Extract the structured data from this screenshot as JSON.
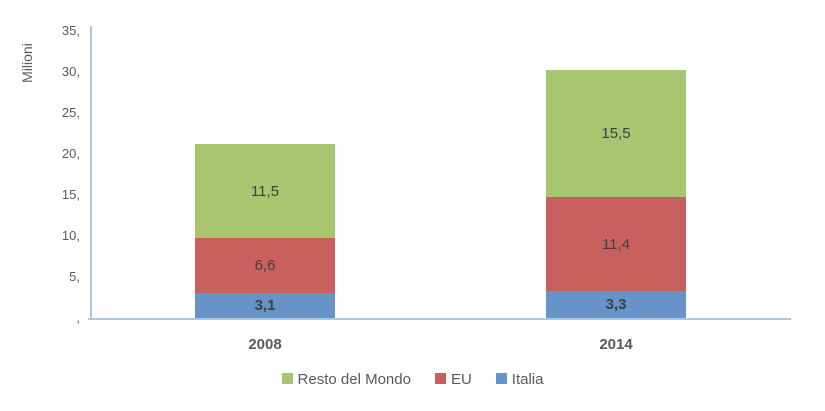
{
  "chart_data": {
    "type": "bar",
    "subtype": "stacked",
    "title": "",
    "ylabel": "Milioni",
    "xlabel": "",
    "categories": [
      "2008",
      "2014"
    ],
    "series": [
      {
        "name": "Italia",
        "color": "#6694C8",
        "values": [
          3.1,
          3.3
        ],
        "labels": [
          "3,1",
          "3,3"
        ],
        "bold_labels": true
      },
      {
        "name": "EU",
        "color": "#C8615E",
        "values": [
          6.6,
          11.4
        ],
        "labels": [
          "6,6",
          "11,4"
        ],
        "bold_labels": false
      },
      {
        "name": "Resto del Mondo",
        "color": "#A8C670",
        "values": [
          11.5,
          15.5
        ],
        "labels": [
          "11,5",
          "15,5"
        ],
        "bold_labels": false
      }
    ],
    "y_axis": {
      "min": 0,
      "max": 35,
      "tick_step": 5,
      "tick_values": [
        35,
        30,
        25,
        20,
        15,
        10,
        5,
        0
      ],
      "tick_labels": [
        "35,",
        "30,",
        "25,",
        "20,",
        "15,",
        "10,",
        "5,",
        ","
      ]
    },
    "legend": {
      "position": "bottom",
      "order": [
        "Resto del Mondo",
        "EU",
        "Italia"
      ]
    },
    "grid": false,
    "axis_color": "#AEC7E0",
    "tick_text_color": "#595959",
    "data_label_color": "#3F3F3F"
  }
}
